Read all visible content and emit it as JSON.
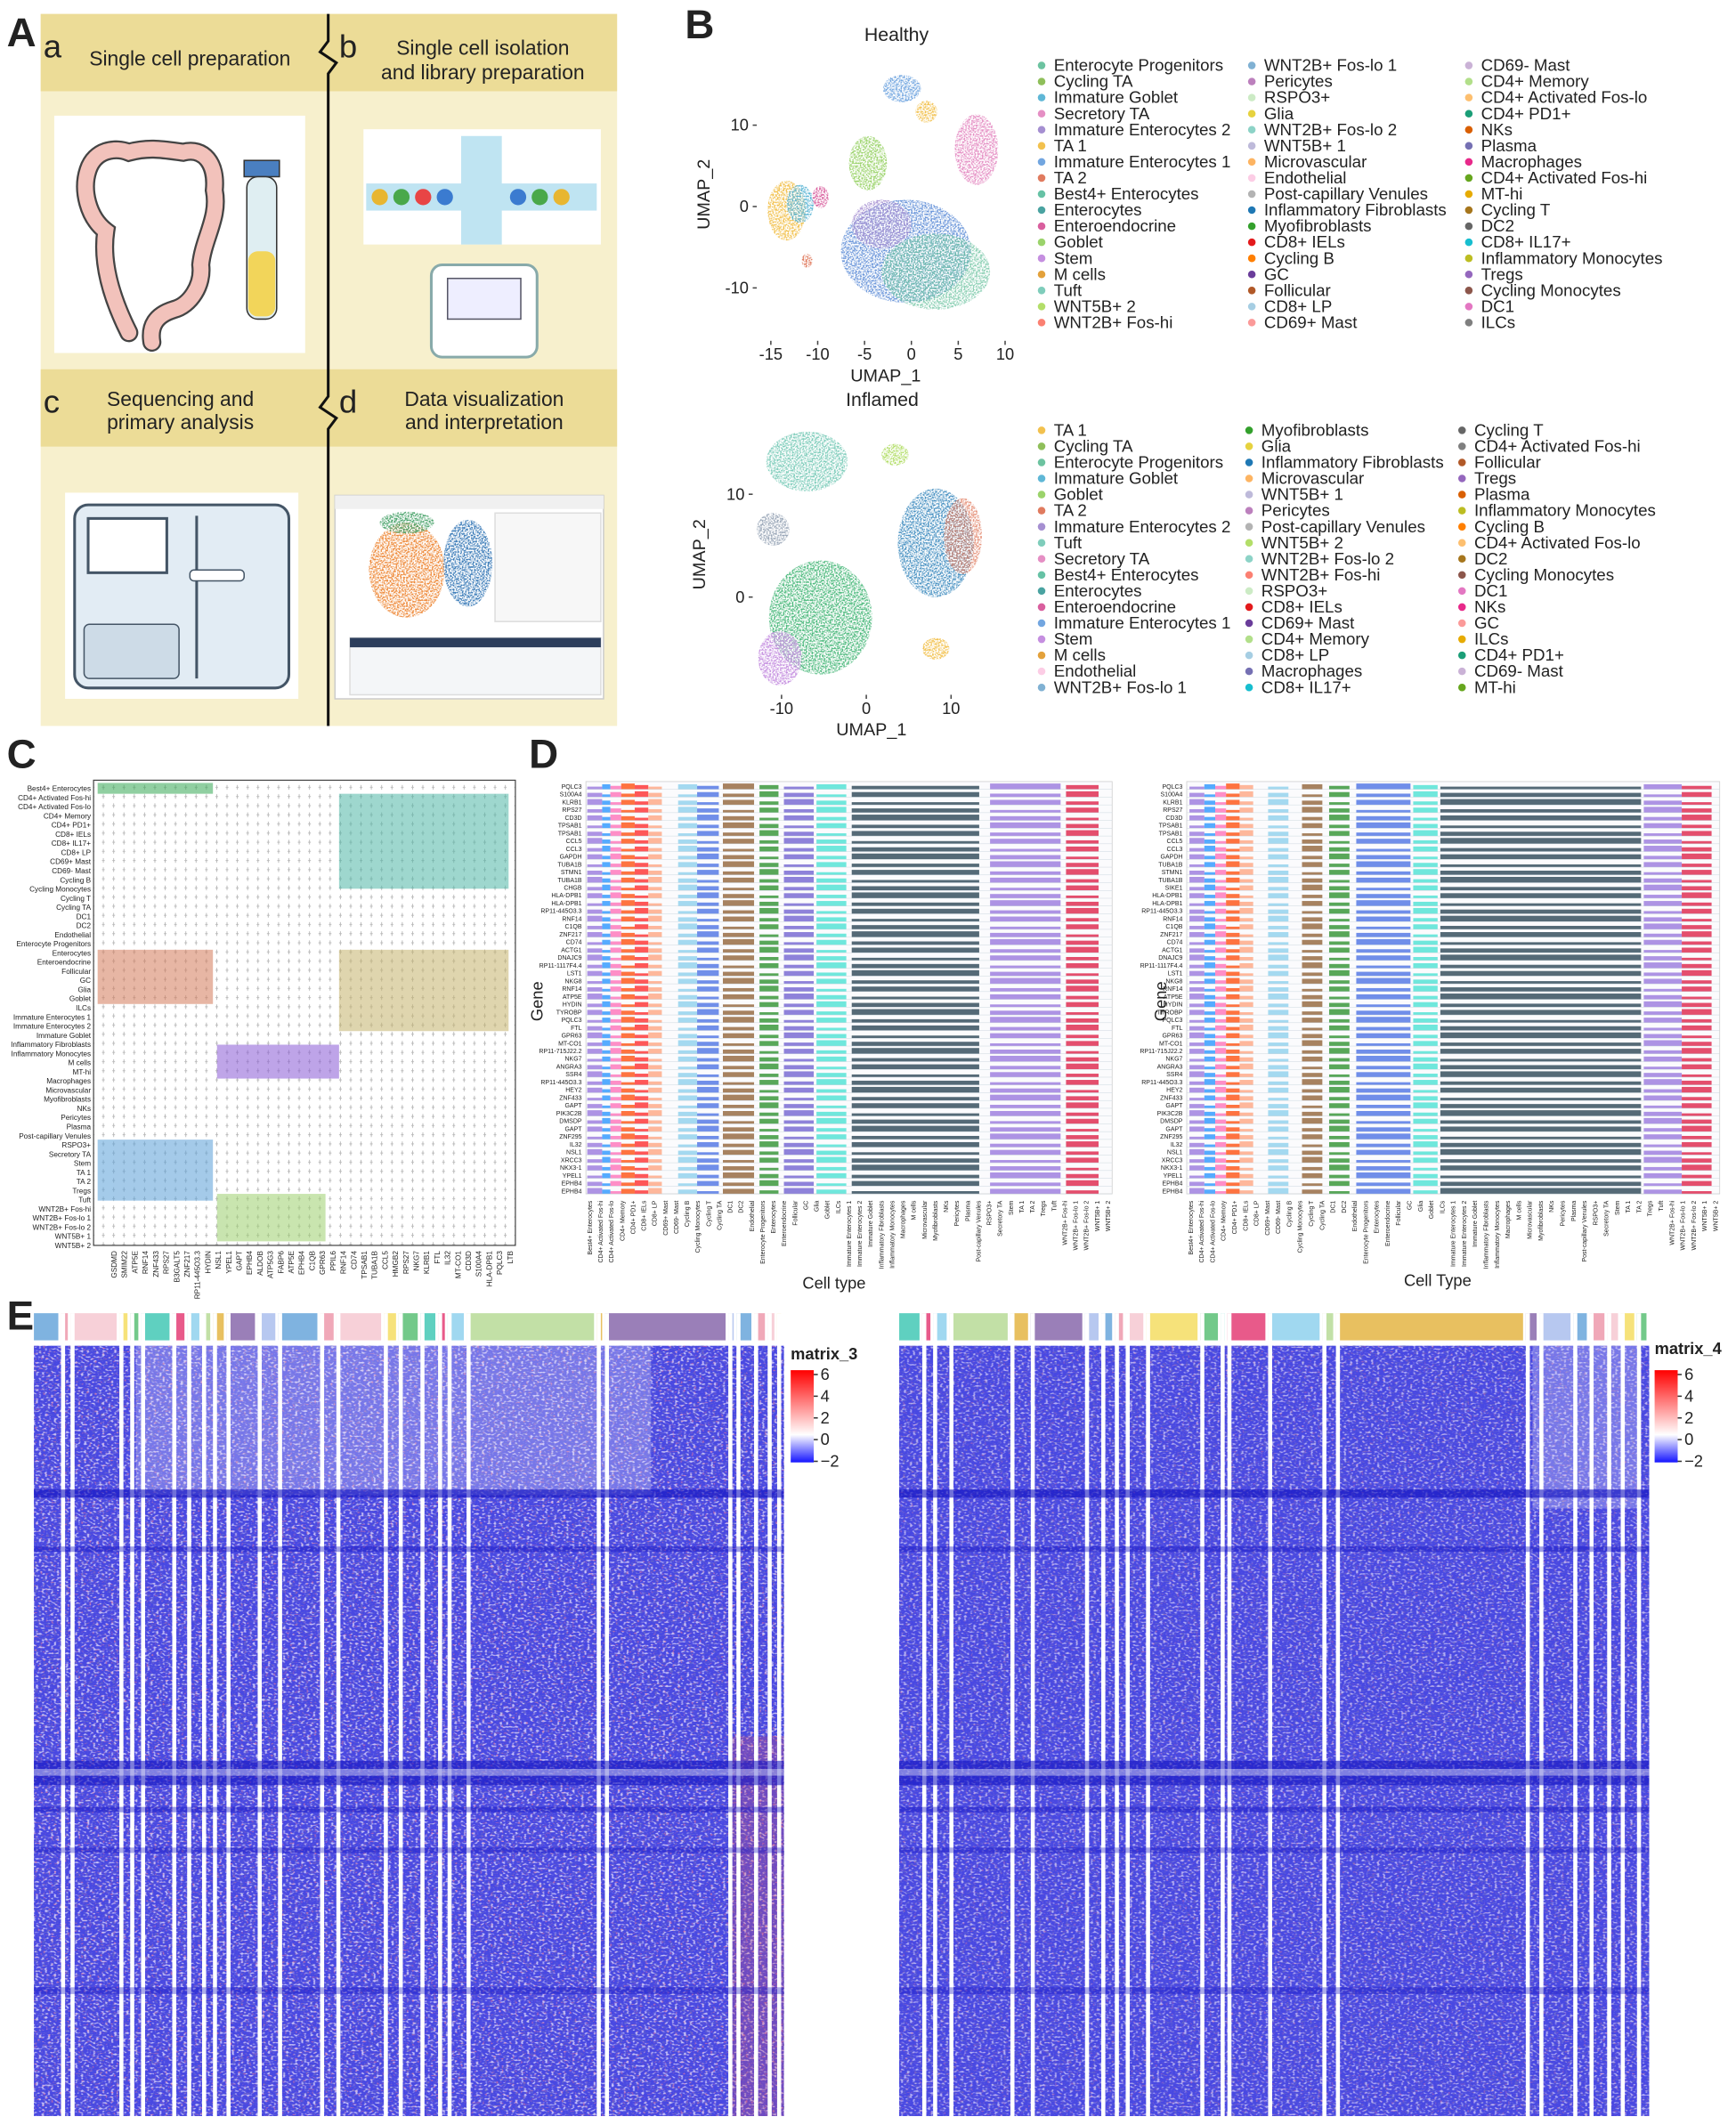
{
  "panels": [
    "A",
    "B",
    "C",
    "D",
    "E"
  ],
  "panel_a": {
    "steps": [
      {
        "letter": "a",
        "title": [
          "Single cell preparation"
        ]
      },
      {
        "letter": "b",
        "title": [
          "Single cell isolation",
          "and library preparation"
        ]
      },
      {
        "letter": "c",
        "title": [
          "Sequencing and",
          "primary analysis"
        ]
      },
      {
        "letter": "d",
        "title": [
          "Data visualization",
          "and interpretation"
        ]
      }
    ]
  },
  "panel_b": {
    "x_label": "UMAP_1",
    "y_label": "UMAP_2",
    "plots": [
      {
        "title": "Healthy",
        "xlim": [
          -16.5,
          11
        ],
        "ylim": [
          -16.5,
          19.5
        ],
        "xticks": [
          -15,
          -10,
          -5,
          0,
          5,
          10
        ],
        "yticks": [
          -10,
          0,
          10
        ],
        "legend": [
          [
            "Enterocyte Progenitors",
            "Cycling TA",
            "Immature Goblet",
            "Secretory TA",
            "Immature Enterocytes 2",
            "TA 1",
            "Immature Enterocytes 1",
            "TA 2",
            "Best4+ Enterocytes",
            "Enterocytes",
            "Enteroendocrine",
            "Goblet",
            "Stem",
            "M cells",
            "Tuft",
            "WNT5B+ 2",
            "WNT2B+ Fos-hi"
          ],
          [
            "WNT2B+ Fos-lo 1",
            "Pericytes",
            "RSPO3+",
            "Glia",
            "WNT2B+ Fos-lo 2",
            "WNT5B+ 1",
            "Microvascular",
            "Endothelial",
            "Post-capillary Venules",
            "Inflammatory Fibroblasts",
            "Myofibroblasts",
            "CD8+ IELs",
            "Cycling B",
            "GC",
            "Follicular",
            "CD8+ LP",
            "CD69+ Mast"
          ],
          [
            "CD69- Mast",
            "CD4+ Memory",
            "CD4+ Activated Fos-lo",
            "CD4+ PD1+",
            "NKs",
            "Plasma",
            "Macrophages",
            "CD4+ Activated Fos-hi",
            "MT-hi",
            "Cycling T",
            "DC2",
            "CD8+ IL17+",
            "Inflammatory Monocytes",
            "Tregs",
            "Cycling Monocytes",
            "DC1",
            "ILCs"
          ]
        ],
        "legend_colors": [
          [
            "#6cc3a0",
            "#8fbf5a",
            "#5fb7d6",
            "#e58fc4",
            "#a58fd1",
            "#f2c14e",
            "#72a6e0",
            "#e07b5f",
            "#66c2a5",
            "#4aa3a1",
            "#d95f9e",
            "#9bd36b",
            "#c58fe0",
            "#e3a13b",
            "#7fcdbb",
            "#b3de69",
            "#fb8072"
          ],
          [
            "#80b1d3",
            "#bc80bd",
            "#ccebc5",
            "#e6d23f",
            "#8dd3c7",
            "#bebada",
            "#fdb462",
            "#fccde5",
            "#b3b3b3",
            "#1f78b4",
            "#33a02c",
            "#e31a1c",
            "#ff7f00",
            "#6a3d9a",
            "#b15928",
            "#a6cee3",
            "#fb9a99"
          ],
          [
            "#cab2d6",
            "#b2df8a",
            "#fdbf6f",
            "#1b9e77",
            "#d95f02",
            "#7570b3",
            "#e7298a",
            "#66a61e",
            "#e6ab02",
            "#a6761d",
            "#666666",
            "#17becf",
            "#bcbd22",
            "#9467bd",
            "#8c564b",
            "#e377c2",
            "#7f7f7f"
          ]
        ]
      },
      {
        "title": "Inflamed",
        "xlim": [
          -13.4,
          14.6
        ],
        "ylim": [
          -9.5,
          17.8
        ],
        "xticks": [
          -10,
          0,
          10
        ],
        "yticks": [
          0,
          10
        ],
        "legend": [
          [
            "TA 1",
            "Cycling TA",
            "Enterocyte Progenitors",
            "Immature Goblet",
            "Goblet",
            "TA 2",
            "Immature Enterocytes 2",
            "Tuft",
            "Secretory TA",
            "Best4+ Enterocytes",
            "Enterocytes",
            "Enteroendocrine",
            "Immature Enterocytes 1",
            "Stem",
            "M cells",
            "Endothelial",
            "WNT2B+ Fos-lo 1"
          ],
          [
            "Myofibroblasts",
            "Glia",
            "Inflammatory Fibroblasts",
            "Microvascular",
            "WNT5B+ 1",
            "Pericytes",
            "Post-capillary Venules",
            "WNT5B+ 2",
            "WNT2B+ Fos-lo 2",
            "WNT2B+ Fos-hi",
            "RSPO3+",
            "CD8+ IELs",
            "CD69+ Mast",
            "CD4+ Memory",
            "CD8+ LP",
            "Macrophages",
            "CD8+ IL17+"
          ],
          [
            "Cycling T",
            "CD4+ Activated Fos-hi",
            "Follicular",
            "Tregs",
            "Plasma",
            "Inflammatory Monocytes",
            "Cycling B",
            "CD4+ Activated Fos-lo",
            "DC2",
            "Cycling Monocytes",
            "DC1",
            "NKs",
            "GC",
            "ILCs",
            "CD4+ PD1+",
            "CD69- Mast",
            "MT-hi"
          ]
        ],
        "legend_colors": [
          [
            "#f2c14e",
            "#8fbf5a",
            "#6cc3a0",
            "#5fb7d6",
            "#9bd36b",
            "#e07b5f",
            "#a58fd1",
            "#7fcdbb",
            "#e58fc4",
            "#66c2a5",
            "#4aa3a1",
            "#d95f9e",
            "#72a6e0",
            "#c58fe0",
            "#e3a13b",
            "#fccde5",
            "#80b1d3"
          ],
          [
            "#33a02c",
            "#e6d23f",
            "#1f78b4",
            "#fdb462",
            "#bebada",
            "#bc80bd",
            "#b3b3b3",
            "#b3de69",
            "#8dd3c7",
            "#fb8072",
            "#ccebc5",
            "#e31a1c",
            "#6a3d9a",
            "#b2df8a",
            "#a6cee3",
            "#7570b3",
            "#17becf"
          ],
          [
            "#666666",
            "#7f7f7f",
            "#b15928",
            "#9467bd",
            "#d95f02",
            "#bcbd22",
            "#ff7f00",
            "#fdbf6f",
            "#a6761d",
            "#8c564b",
            "#e377c2",
            "#e7298a",
            "#fb9a99",
            "#e6ab02",
            "#1b9e77",
            "#cab2d6",
            "#66a61e"
          ]
        ]
      }
    ]
  },
  "panel_c": {
    "rows": [
      "Best4+ Enterocytes",
      "CD4+ Activated Fos-hi",
      "CD4+ Activated Fos-lo",
      "CD4+ Memory",
      "CD4+ PD1+",
      "CD8+ IELs",
      "CD8+ IL17+",
      "CD8+ LP",
      "CD69+ Mast",
      "CD69- Mast",
      "Cycling B",
      "Cycling Monocytes",
      "Cycling T",
      "Cycling TA",
      "DC1",
      "DC2",
      "Endothelial",
      "Enterocyte Progenitors",
      "Enterocytes",
      "Enteroendocrine",
      "Follicular",
      "GC",
      "Glia",
      "Goblet",
      "ILCs",
      "Immature Enterocytes 1",
      "Immature Enterocytes 2",
      "Immature Goblet",
      "Inflammatory Fibroblasts",
      "Inflammatory Monocytes",
      "M cells",
      "MT-hi",
      "Macrophages",
      "Microvascular",
      "Myofibroblasts",
      "NKs",
      "Pericytes",
      "Plasma",
      "Post-capillary Venules",
      "RSPO3+",
      "Secretory TA",
      "Stem",
      "TA 1",
      "TA 2",
      "Tregs",
      "Tuft",
      "WNT2B+ Fos-hi",
      "WNT2B+ Fos-lo 1",
      "WNT2B+ Fos-lo 2",
      "WNT5B+ 1",
      "WNT5B+ 2"
    ],
    "genes": [
      "GSDMD",
      "SMIM22",
      "ATP5E",
      "RNF14",
      "ZNF433",
      "RPS27",
      "B3GALT5",
      "ZNF217",
      "RP11-445O3.3",
      "HYDIN",
      "NSL1",
      "YPEL1",
      "GAPT",
      "EPHB4",
      "ALDOB",
      "ATP5G3",
      "FABP6",
      "ATP5E",
      "EPHB4",
      "C1QB",
      "GPR63",
      "PPIL6",
      "RNF14",
      "CD74",
      "TPSAB1",
      "TUBA1B",
      "CCL5",
      "HMGB2",
      "RPS27",
      "NKG7",
      "KLRB1",
      "FTL",
      "IL32",
      "MT-CO1",
      "CD3D",
      "S100A4",
      "HLA-DPB1",
      "PQLC3",
      "LTB"
    ]
  },
  "panel_d": {
    "plots": [
      {
        "y_label": "Gene",
        "x_label": "Cell type",
        "genes": [
          "PQLC3",
          "S100A4",
          "KLRB1",
          "RPS27",
          "CD3D",
          "TPSAB1",
          "TPSAB1",
          "CCL5",
          "CCL3",
          "GAPDH",
          "TUBA1B",
          "STMN1",
          "TUBA1B",
          "CHGB",
          "HLA-DPB1",
          "HLA-DPB1",
          "RP11-445O3.3",
          "RNF14",
          "C1QB",
          "ZNF217",
          "CD74",
          "ACTG1",
          "DNAJC9",
          "RP11-1117F4.4",
          "LST1",
          "NKG8",
          "RNF14",
          "ATP5E",
          "HYDIN",
          "TYROBP",
          "PQLC3",
          "FTL",
          "GPR63",
          "MT-CO1",
          "RP11-715J22.2",
          "NKG7",
          "ANGRA3",
          "SSR4",
          "RP11-445O3.3",
          "HEY2",
          "ZNF433",
          "GAPT",
          "PIK3C2B",
          "DMSDP",
          "GAPT",
          "ZNF295",
          "IL32",
          "NSL1",
          "XRCC3",
          "NKX3-1",
          "YPEL1",
          "EPHB4",
          "EPHB4"
        ],
        "cell_types": [
          "Best4+ Enterocytes",
          "CD4+ Activated Fos-hi",
          "CD4+ Activated Fos-lo",
          "CD4+ Memory",
          "CD4+ PD1+",
          "CD8+ IELs",
          "CD8+ LP",
          "CD69+ Mast",
          "CD69- Mast",
          "Cycling B",
          "Cycling Monocytes",
          "Cycling T",
          "Cycling TA",
          "DC1",
          "DC2",
          "Endothelial",
          "Enterocyte Progenitors",
          "Enterocytes",
          "Enteroendocrine",
          "Follicular",
          "GC",
          "Glia",
          "Goblet",
          "ILCs",
          "Immature Enterocytes 1",
          "Immature Enterocytes 2",
          "Immature Goblet",
          "Inflammatory Fibroblasts",
          "Inflammatory Monocytes",
          "Macrophages",
          "M cells",
          "Microvascular",
          "Myofibroblasts",
          "NKs",
          "Pericytes",
          "Plasma",
          "Post-capillary Venules",
          "RSPO3+",
          "Secretory TA",
          "Stem",
          "TA 1",
          "TA 2",
          "Tregs",
          "Tuft",
          "WNT2B+ Fos-hi",
          "WNT2B+ Fos-lo 1",
          "WNT2B+ Fos-lo 2",
          "WNT5B+ 1",
          "WNT5B+ 2"
        ]
      },
      {
        "y_label": "Gene",
        "x_label": "Cell Type",
        "genes": [
          "PQLC3",
          "S100A4",
          "KLRB1",
          "RPS27",
          "CD3D",
          "TPSAB1",
          "TPSAB1",
          "CCL5",
          "CCL3",
          "GAPDH",
          "TUBA1B",
          "STMN1",
          "TUBA1B",
          "SIKE1",
          "HLA-DPB1",
          "HLA-DPB1",
          "RP11-445O3.3",
          "RNF14",
          "C1QB",
          "ZNF217",
          "CD74",
          "ACTG1",
          "DNAJC9",
          "RP11-1117F4.4",
          "LST1",
          "NKG8",
          "RNF14",
          "ATP5E",
          "HYDIN",
          "TYROBP",
          "PQLC3",
          "FTL",
          "GPR63",
          "MT-CO1",
          "RP11-715J22.2",
          "NKG7",
          "ANGRA3",
          "SSR4",
          "RP11-445O3.3",
          "HEY2",
          "ZNF433",
          "GAPT",
          "PIK3C2B",
          "DMSDP",
          "GAPT",
          "ZNF295",
          "IL32",
          "NSL1",
          "XRCC3",
          "NKX3-1",
          "YPEL1",
          "EPHB4",
          "EPHB4"
        ],
        "cell_types": [
          "Best4+ Enterocytes",
          "CD4+ Activated Fos-hi",
          "CD4+ Activated Fos-lo",
          "CD4+ Memory",
          "CD4+ PD1+",
          "CD8+ IELs",
          "CD8+ LP",
          "CD69+ Mast",
          "CD69- Mast",
          "Cycling B",
          "Cycling Monocytes",
          "Cycling T",
          "Cycling TA",
          "DC1",
          "DC2",
          "Endothelial",
          "Enterocyte Progenitors",
          "Enterocytes",
          "Enteroendocrine",
          "Follicular",
          "GC",
          "Glia",
          "Goblet",
          "ILCs",
          "Immature Enterocytes 1",
          "Immature Enterocytes 2",
          "Immature Goblet",
          "Inflammatory Fibroblasts",
          "Inflammatory Monocytes",
          "Macrophages",
          "M cells",
          "Microvascular",
          "Myofibroblasts",
          "NKs",
          "Pericytes",
          "Plasma",
          "Post-capillary Venules",
          "RSPO3+",
          "Secretory TA",
          "Stem",
          "TA 1",
          "TA 2",
          "Tregs",
          "Tuft",
          "WNT2B+ Fos-hi",
          "WNT2B+ Fos-lo 1",
          "WNT2B+ Fos-lo 2",
          "WNT5B+ 1",
          "WNT5B+ 2"
        ]
      }
    ]
  },
  "panel_e": {
    "heatmaps": [
      {
        "legend_title": "matrix_3",
        "lim": [
          -2.1,
          6.4
        ],
        "ticks": [
          {
            "value": 6,
            "label": "6"
          },
          {
            "value": 4,
            "label": "4"
          },
          {
            "value": 2,
            "label": "2"
          },
          {
            "value": 0,
            "label": "0"
          },
          {
            "value": -2,
            "label": "−2"
          }
        ]
      },
      {
        "legend_title": "matrix_4",
        "lim": [
          -2.1,
          6.4
        ],
        "ticks": [
          {
            "value": 6,
            "label": "6"
          },
          {
            "value": 4,
            "label": "4"
          },
          {
            "value": 2,
            "label": "2"
          },
          {
            "value": 0,
            "label": "0"
          },
          {
            "value": -2,
            "label": "−2"
          }
        ]
      }
    ]
  }
}
